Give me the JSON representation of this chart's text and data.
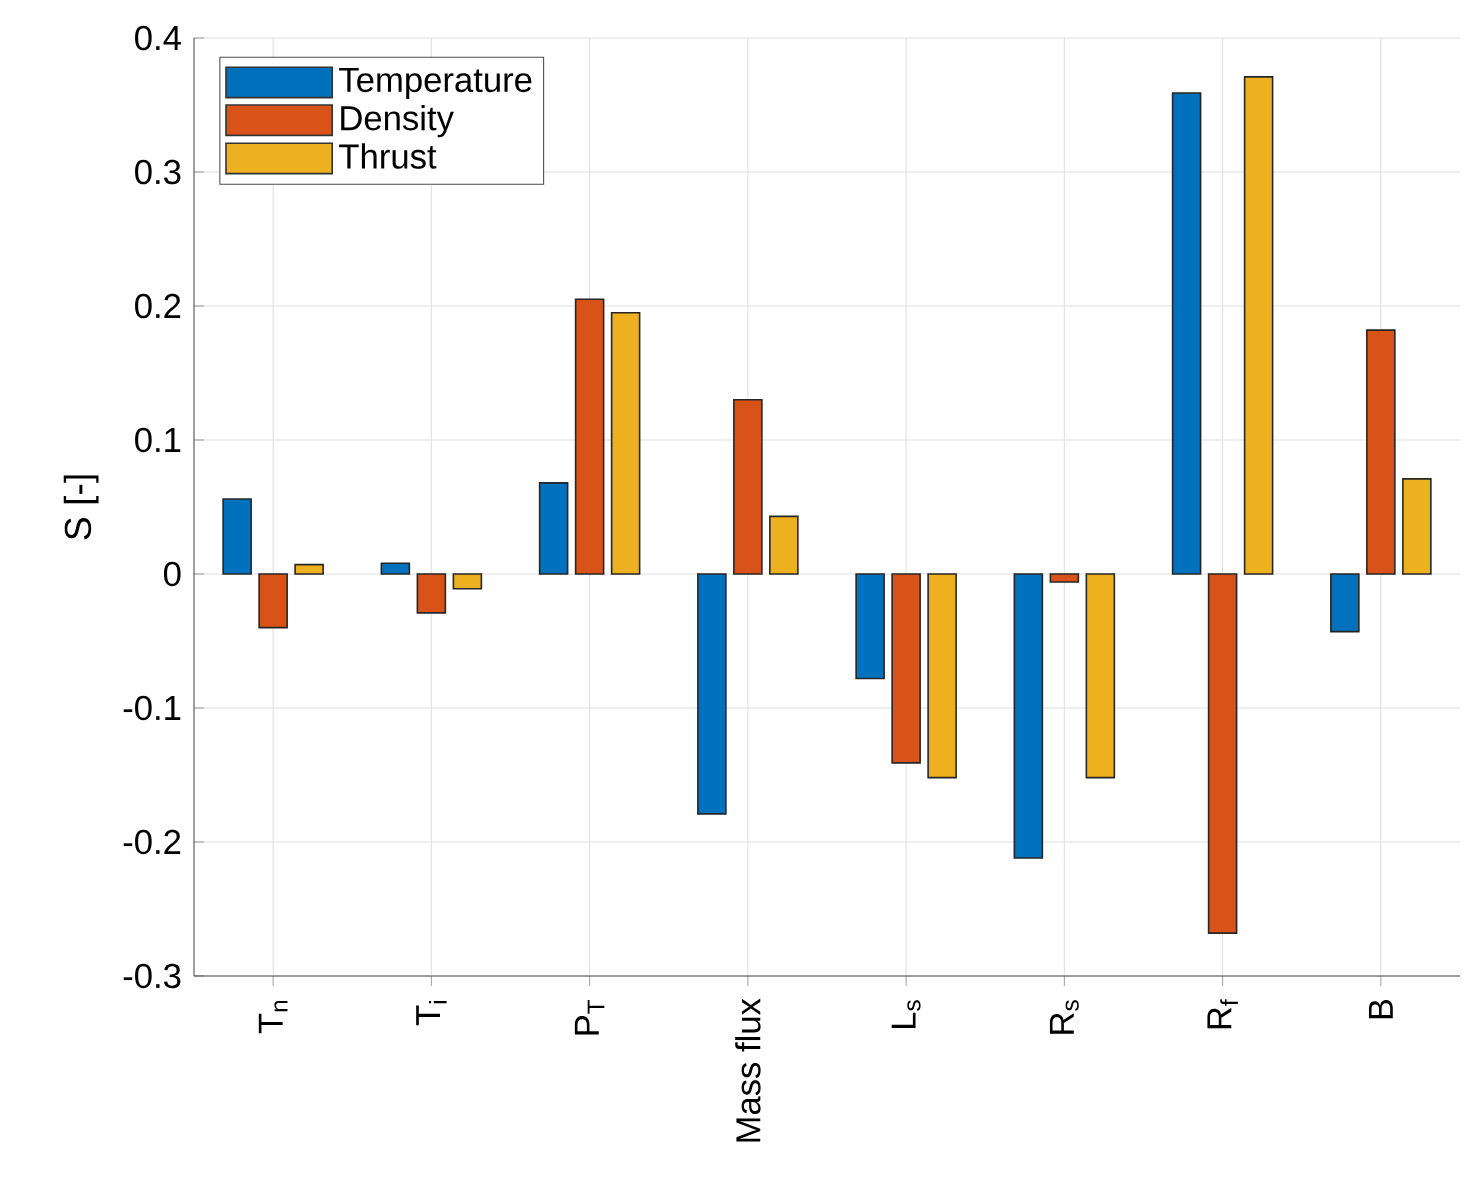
{
  "chart_data": {
    "type": "bar",
    "ylabel": "S [-]",
    "categories": [
      "T$_{n}$",
      "T$_{i}$",
      "P$_{T}$",
      "Mass flux",
      "L$_{s}$",
      "R$_{s}$",
      "R$_{f}$",
      "B"
    ],
    "series": [
      {
        "name": "Temperature",
        "color": "#0072bd",
        "values": [
          0.056,
          0.008,
          0.068,
          -0.179,
          -0.078,
          -0.212,
          0.359,
          -0.043
        ]
      },
      {
        "name": "Density",
        "color": "#d95319",
        "values": [
          -0.04,
          -0.029,
          0.205,
          0.13,
          -0.141,
          -0.006,
          -0.268,
          0.182
        ]
      },
      {
        "name": "Thrust",
        "color": "#edb120",
        "values": [
          0.007,
          -0.011,
          0.195,
          0.043,
          -0.152,
          -0.152,
          0.371,
          0.071
        ]
      }
    ],
    "ylim": [
      -0.3,
      0.4
    ],
    "yticks": [
      -0.3,
      -0.2,
      -0.1,
      0,
      0.1,
      0.2,
      0.3,
      0.4
    ],
    "grid": true,
    "legend": "top left"
  }
}
